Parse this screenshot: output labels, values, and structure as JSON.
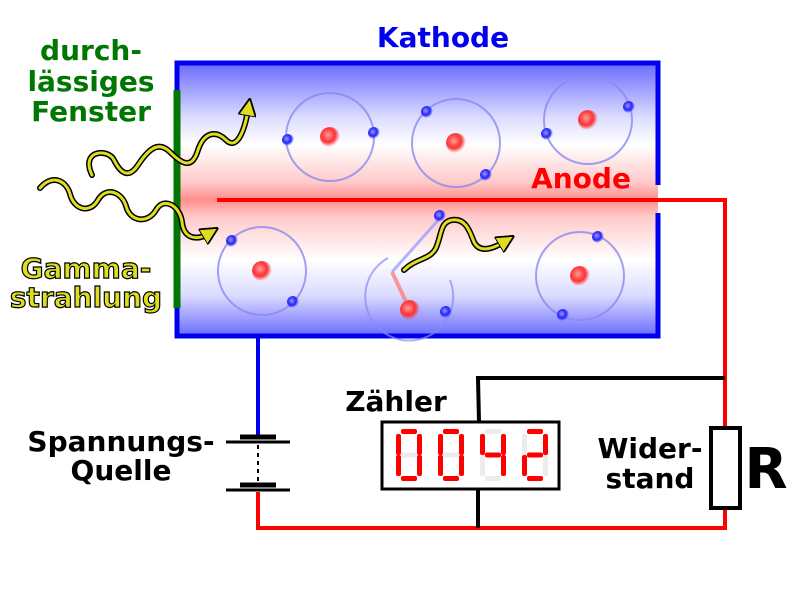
{
  "labels": {
    "window_line1": "durch-",
    "window_line2": "lässiges",
    "window_line3": "Fenster",
    "cathode": "Kathode",
    "anode": "Anode",
    "gamma_line1": "Gamma-",
    "gamma_line2": "strahlung",
    "counter": "Zähler",
    "source_line1": "Spannungs-",
    "source_line2": "Quelle",
    "resistor_line1": "Wider-",
    "resistor_line2": "stand",
    "resistor_symbol": "R"
  },
  "counter_display": "0042",
  "colors": {
    "cathode": "#0000ee",
    "anode": "#ff0000",
    "window": "#007700",
    "gamma": "#dddd22",
    "wire": "#000000",
    "display_digits": "#ff0000"
  }
}
